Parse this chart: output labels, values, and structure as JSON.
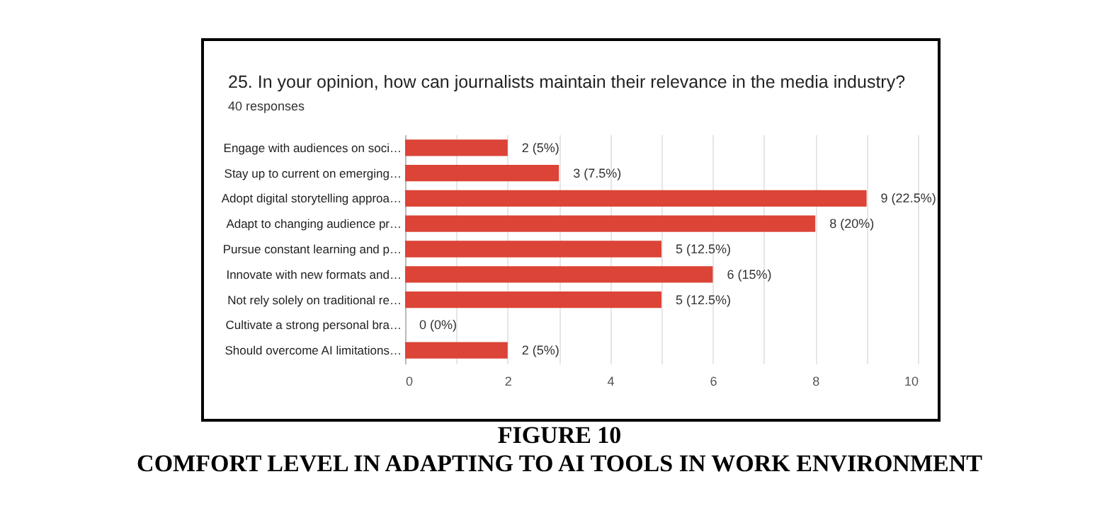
{
  "chart_data": {
    "type": "bar",
    "orientation": "horizontal",
    "title": "25. In your opinion, how can journalists maintain their relevance in the media industry?",
    "subtitle": "40 responses",
    "categories": [
      "Engage with audiences on soci…",
      "Stay up to current on emerging…",
      "Adopt digital storytelling approa…",
      "Adapt to changing audience pr…",
      "Pursue constant learning and p…",
      "Innovate with new formats and…",
      "Not rely solely on traditional re…",
      "Cultivate a strong personal bra…",
      "Should overcome AI limitations…"
    ],
    "values": [
      2,
      3,
      9,
      8,
      5,
      6,
      5,
      0,
      2
    ],
    "value_labels": [
      "2 (5%)",
      "3 (7.5%)",
      "9 (22.5%)",
      "8 (20%)",
      "5 (12.5%)",
      "6 (15%)",
      "5 (12.5%)",
      "0 (0%)",
      "2 (5%)"
    ],
    "color": "#db4437",
    "xlim": [
      0,
      10
    ],
    "xticks": [
      0,
      {
        "value": 1,
        "label": null
      },
      2,
      {
        "value": 3,
        "label": null
      },
      4,
      {
        "value": 5,
        "label": null
      },
      6,
      {
        "value": 7,
        "label": null
      },
      8,
      {
        "value": 9,
        "label": null
      },
      10
    ],
    "grid": "x",
    "annotations": [
      "FIGURE 10",
      "COMFORT LEVEL IN ADAPTING TO AI TOOLS IN WORK ENVIRONMENT"
    ]
  }
}
